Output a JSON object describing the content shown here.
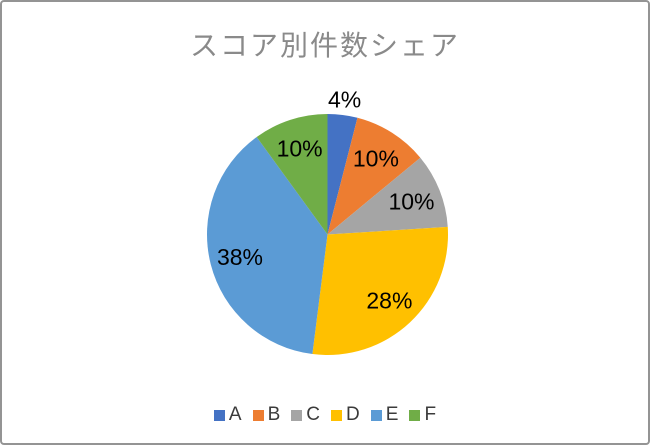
{
  "window": {
    "background": "#ffffff",
    "frame_border_color": "#949494"
  },
  "chart_data": {
    "type": "pie",
    "title": "スコア別件数シェア",
    "title_color": "#8a8a8a",
    "categories": [
      "A",
      "B",
      "C",
      "D",
      "E",
      "F"
    ],
    "values": [
      4,
      10,
      10,
      28,
      38,
      10
    ],
    "unit": "percent",
    "colors": [
      "#4472C4",
      "#ED7D31",
      "#A5A5A5",
      "#FFC000",
      "#5B9BD5",
      "#70AD47"
    ],
    "data_labels": [
      "4%",
      "10%",
      "10%",
      "28%",
      "38%",
      "10%"
    ],
    "label_placements": [
      "outside",
      "inside",
      "inside",
      "inside",
      "inside",
      "inside"
    ],
    "label_color": "#000000",
    "start_angle_deg": 0,
    "direction": "clockwise",
    "legend_position": "bottom",
    "legend_text_color": "#3b3b3b"
  }
}
